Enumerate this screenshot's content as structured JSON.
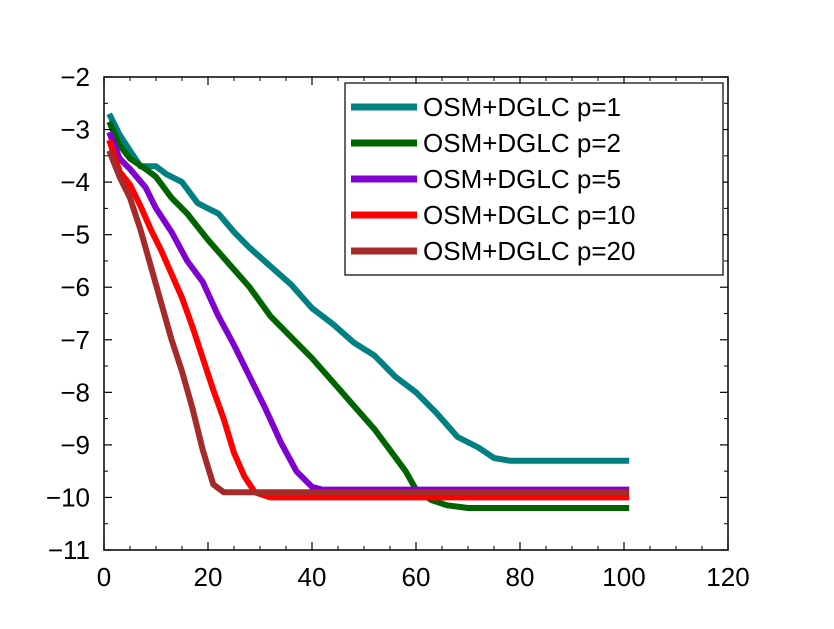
{
  "chart_data": {
    "type": "line",
    "title": "",
    "xlabel": "",
    "ylabel": "",
    "xlim": [
      0,
      120
    ],
    "ylim": [
      -11,
      -2
    ],
    "xticks": [
      0,
      20,
      40,
      60,
      80,
      100,
      120
    ],
    "yticks": [
      -2,
      -3,
      -4,
      -5,
      -6,
      -7,
      -8,
      -9,
      -10,
      -11
    ],
    "grid": false,
    "legend_position": "top-right",
    "series": [
      {
        "name": "OSM+DGLC p=1",
        "color": "#008080",
        "points": [
          [
            1,
            -2.7
          ],
          [
            3,
            -3.1
          ],
          [
            5,
            -3.4
          ],
          [
            7,
            -3.7
          ],
          [
            10,
            -3.7
          ],
          [
            12,
            -3.85
          ],
          [
            15,
            -4.0
          ],
          [
            18,
            -4.4
          ],
          [
            20,
            -4.5
          ],
          [
            22,
            -4.6
          ],
          [
            25,
            -4.95
          ],
          [
            28,
            -5.25
          ],
          [
            32,
            -5.6
          ],
          [
            36,
            -5.95
          ],
          [
            40,
            -6.4
          ],
          [
            44,
            -6.7
          ],
          [
            48,
            -7.05
          ],
          [
            52,
            -7.3
          ],
          [
            56,
            -7.7
          ],
          [
            60,
            -8.0
          ],
          [
            64,
            -8.4
          ],
          [
            68,
            -8.85
          ],
          [
            72,
            -9.05
          ],
          [
            75,
            -9.25
          ],
          [
            78,
            -9.3
          ],
          [
            82,
            -9.3
          ],
          [
            88,
            -9.3
          ],
          [
            95,
            -9.3
          ],
          [
            101,
            -9.3
          ]
        ]
      },
      {
        "name": "OSM+DGLC p=2",
        "color": "#006400",
        "points": [
          [
            1,
            -2.85
          ],
          [
            3,
            -3.3
          ],
          [
            5,
            -3.55
          ],
          [
            8,
            -3.75
          ],
          [
            10,
            -3.9
          ],
          [
            13,
            -4.3
          ],
          [
            16,
            -4.6
          ],
          [
            20,
            -5.1
          ],
          [
            24,
            -5.55
          ],
          [
            28,
            -6.0
          ],
          [
            32,
            -6.55
          ],
          [
            36,
            -6.95
          ],
          [
            40,
            -7.35
          ],
          [
            44,
            -7.8
          ],
          [
            48,
            -8.25
          ],
          [
            52,
            -8.7
          ],
          [
            55,
            -9.1
          ],
          [
            58,
            -9.5
          ],
          [
            60,
            -9.85
          ],
          [
            63,
            -10.05
          ],
          [
            66,
            -10.15
          ],
          [
            70,
            -10.2
          ],
          [
            80,
            -10.2
          ],
          [
            90,
            -10.2
          ],
          [
            101,
            -10.2
          ]
        ]
      },
      {
        "name": "OSM+DGLC p=5",
        "color": "#8000d0",
        "points": [
          [
            1,
            -3.05
          ],
          [
            3,
            -3.55
          ],
          [
            5,
            -3.75
          ],
          [
            8,
            -4.1
          ],
          [
            10,
            -4.5
          ],
          [
            13,
            -4.95
          ],
          [
            16,
            -5.5
          ],
          [
            19,
            -5.9
          ],
          [
            22,
            -6.55
          ],
          [
            25,
            -7.1
          ],
          [
            28,
            -7.7
          ],
          [
            31,
            -8.3
          ],
          [
            34,
            -8.95
          ],
          [
            37,
            -9.5
          ],
          [
            40,
            -9.8
          ],
          [
            42,
            -9.85
          ],
          [
            50,
            -9.85
          ],
          [
            60,
            -9.85
          ],
          [
            70,
            -9.85
          ],
          [
            80,
            -9.85
          ],
          [
            90,
            -9.85
          ],
          [
            101,
            -9.85
          ]
        ]
      },
      {
        "name": "OSM+DGLC p=10",
        "color": "#ff0000",
        "points": [
          [
            1,
            -3.2
          ],
          [
            3,
            -3.8
          ],
          [
            5,
            -4.05
          ],
          [
            7,
            -4.45
          ],
          [
            9,
            -4.9
          ],
          [
            11,
            -5.3
          ],
          [
            13,
            -5.75
          ],
          [
            15,
            -6.2
          ],
          [
            17,
            -6.75
          ],
          [
            19,
            -7.35
          ],
          [
            21,
            -7.95
          ],
          [
            23,
            -8.5
          ],
          [
            25,
            -9.15
          ],
          [
            27,
            -9.6
          ],
          [
            29,
            -9.9
          ],
          [
            32,
            -10.0
          ],
          [
            40,
            -10.0
          ],
          [
            50,
            -10.0
          ],
          [
            60,
            -10.0
          ],
          [
            70,
            -10.0
          ],
          [
            80,
            -10.0
          ],
          [
            90,
            -10.0
          ],
          [
            101,
            -10.0
          ]
        ]
      },
      {
        "name": "OSM+DGLC p=20",
        "color": "#a52a2a",
        "points": [
          [
            1,
            -3.4
          ],
          [
            3,
            -3.9
          ],
          [
            5,
            -4.3
          ],
          [
            7,
            -4.9
          ],
          [
            9,
            -5.6
          ],
          [
            11,
            -6.3
          ],
          [
            13,
            -7.0
          ],
          [
            15,
            -7.6
          ],
          [
            17,
            -8.3
          ],
          [
            19,
            -9.1
          ],
          [
            21,
            -9.75
          ],
          [
            23,
            -9.9
          ],
          [
            30,
            -9.9
          ],
          [
            40,
            -9.9
          ],
          [
            50,
            -9.9
          ],
          [
            60,
            -9.9
          ],
          [
            70,
            -9.9
          ],
          [
            80,
            -9.9
          ],
          [
            90,
            -9.9
          ],
          [
            101,
            -9.9
          ]
        ]
      }
    ]
  }
}
